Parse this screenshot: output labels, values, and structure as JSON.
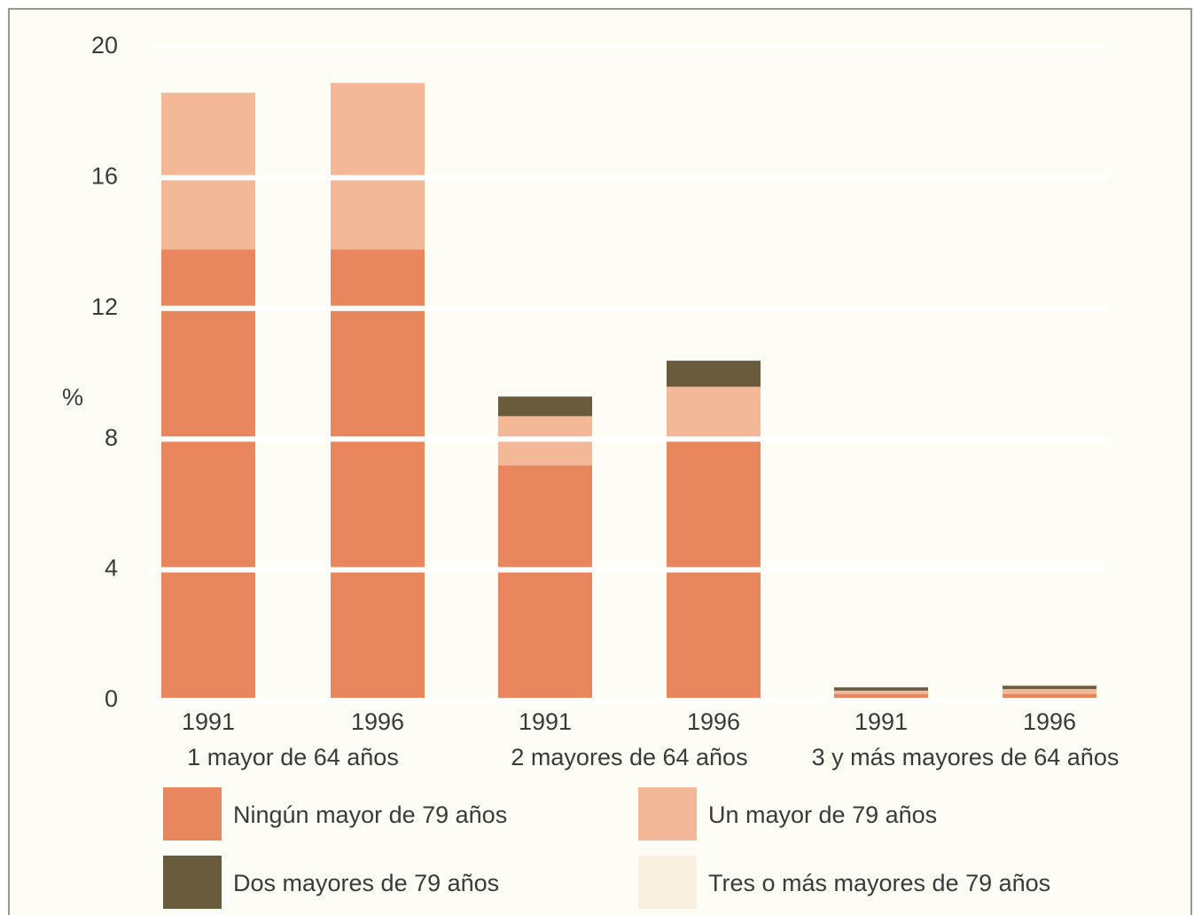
{
  "chart_data": {
    "type": "stacked_bar",
    "y_label": "%",
    "categories": [
      "1991",
      "1996",
      "1991",
      "1996",
      "1991",
      "1996"
    ],
    "groups": [
      "1 mayor de 64 años",
      "2 mayores de 64 años",
      "3 y más mayores de 64 años"
    ],
    "series": [
      {
        "name": "Ningún mayor de 79 años",
        "color": "#e8875e",
        "values": [
          13.8,
          13.8,
          7.2,
          8.0,
          0.2,
          0.2
        ]
      },
      {
        "name": "Un mayor de 79 años",
        "color": "#f3b897",
        "values": [
          4.8,
          5.1,
          1.5,
          1.6,
          0.1,
          0.15
        ]
      },
      {
        "name": "Dos mayores de 79 años",
        "color": "#6b5b3d",
        "values": [
          0,
          0,
          0.6,
          0.8,
          0.1,
          0.1
        ]
      },
      {
        "name": "Tres o más mayores de 79 años",
        "color": "#f9f0df",
        "values": [
          0,
          0,
          0,
          0,
          0,
          0.05
        ]
      }
    ],
    "ylim": [
      0,
      20
    ],
    "yticks": [
      0,
      4,
      8,
      12,
      16,
      20
    ],
    "grid": true
  }
}
